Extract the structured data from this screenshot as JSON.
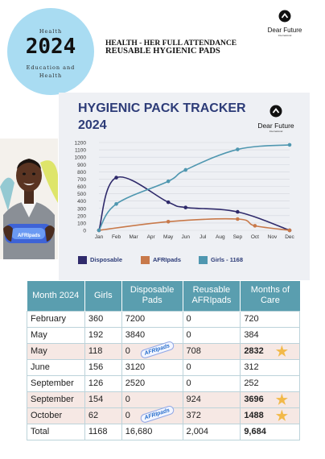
{
  "badge": {
    "line1": "Health",
    "year": "2024",
    "line3": "Education and",
    "line4": "Health"
  },
  "header": {
    "title_line1": "HEALTH - HER FULL ATTENDANCE",
    "title_line2": "REUSABLE HYGIENIC PADS"
  },
  "logo": {
    "name": "Dear Future",
    "sub": "International",
    "icon": "dear-future-logo-icon"
  },
  "chart": {
    "title_line1": "HYGIENIC PACK TRACKER",
    "title_line2": "2024"
  },
  "photo": {
    "icon": "student-holding-afripads-photo",
    "pack_text": "AFRIpads"
  },
  "colors": {
    "disposable": "#2f2a6b",
    "afripads": "#c8794a",
    "girls": "#4f97b0",
    "table_header": "#5a9eaf",
    "highlight_row": "#f6e8e4",
    "star": "#f2b949",
    "title": "#2d3c78"
  },
  "chart_data": {
    "type": "line",
    "x": [
      "Jan",
      "Feb",
      "Mar",
      "Apr",
      "May",
      "Jun",
      "Jul",
      "Aug",
      "Sep",
      "Oct",
      "Nov",
      "Dec"
    ],
    "ylim": [
      0,
      1200
    ],
    "yticks": [
      "0",
      "100",
      "200",
      "300",
      "400",
      "500",
      "600",
      "700",
      "800",
      "900",
      "1000",
      "1100",
      "1200"
    ],
    "grid": "horizontal",
    "legend_position": "bottom",
    "series": [
      {
        "name": "Disposable",
        "color": "#2f2a6b",
        "points": [
          [
            0,
            0
          ],
          [
            1,
            720
          ],
          [
            4,
            384
          ],
          [
            5,
            312
          ],
          [
            8,
            252
          ],
          [
            11,
            0
          ]
        ]
      },
      {
        "name": "AFRIpads",
        "color": "#c8794a",
        "points": [
          [
            0,
            0
          ],
          [
            4,
            118
          ],
          [
            8,
            154
          ],
          [
            9,
            62
          ],
          [
            11,
            0
          ]
        ]
      },
      {
        "name": "Girls - 1168",
        "color": "#4f97b0",
        "points": [
          [
            0,
            0
          ],
          [
            1,
            360
          ],
          [
            4,
            670
          ],
          [
            5,
            826
          ],
          [
            8,
            1106
          ],
          [
            11,
            1168
          ]
        ]
      }
    ]
  },
  "table": {
    "headers": [
      "Month 2024",
      "Girls",
      "Disposable Pads",
      "Reusable AFRIpads",
      "Months of Care"
    ],
    "rows": [
      {
        "cells": [
          "February",
          "360",
          "7200",
          "0",
          "720"
        ],
        "highlight": false
      },
      {
        "cells": [
          "May",
          "192",
          "3840",
          "0",
          "384"
        ],
        "highlight": false
      },
      {
        "cells": [
          "May",
          "118",
          "0",
          "708",
          "2832"
        ],
        "highlight": true,
        "badge": "AFRIpads",
        "star": true
      },
      {
        "cells": [
          "June",
          "156",
          "3120",
          "0",
          "312"
        ],
        "highlight": false
      },
      {
        "cells": [
          "September",
          "126",
          "2520",
          "0",
          "252"
        ],
        "highlight": false
      },
      {
        "cells": [
          "September",
          "154",
          "0",
          "924",
          "3696"
        ],
        "highlight": true,
        "star": true
      },
      {
        "cells": [
          "October",
          "62",
          "0",
          "372",
          "1488"
        ],
        "highlight": true,
        "badge": "AFRIpads",
        "star": true
      },
      {
        "cells": [
          "Total",
          "1168",
          "16,680",
          "2,004",
          "9,684"
        ],
        "highlight": false
      }
    ]
  }
}
